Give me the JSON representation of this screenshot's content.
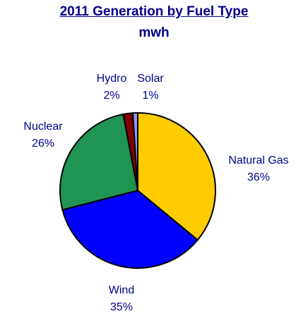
{
  "chart_data": {
    "type": "pie",
    "title": "2011 Generation by Fuel Type",
    "subtitle": "mwh",
    "slices": [
      {
        "label": "Natural Gas",
        "percent_label": "36%",
        "value": 36,
        "color": "#ffcc00"
      },
      {
        "label": "Wind",
        "percent_label": "35%",
        "value": 35,
        "color": "#0000ff"
      },
      {
        "label": "Nuclear",
        "percent_label": "26%",
        "value": 26,
        "color": "#209453"
      },
      {
        "label": "Hydro",
        "percent_label": "2%",
        "value": 2,
        "color": "#800000"
      },
      {
        "label": "Solar",
        "percent_label": "1%",
        "value": 1,
        "color": "#9999ff"
      }
    ]
  }
}
